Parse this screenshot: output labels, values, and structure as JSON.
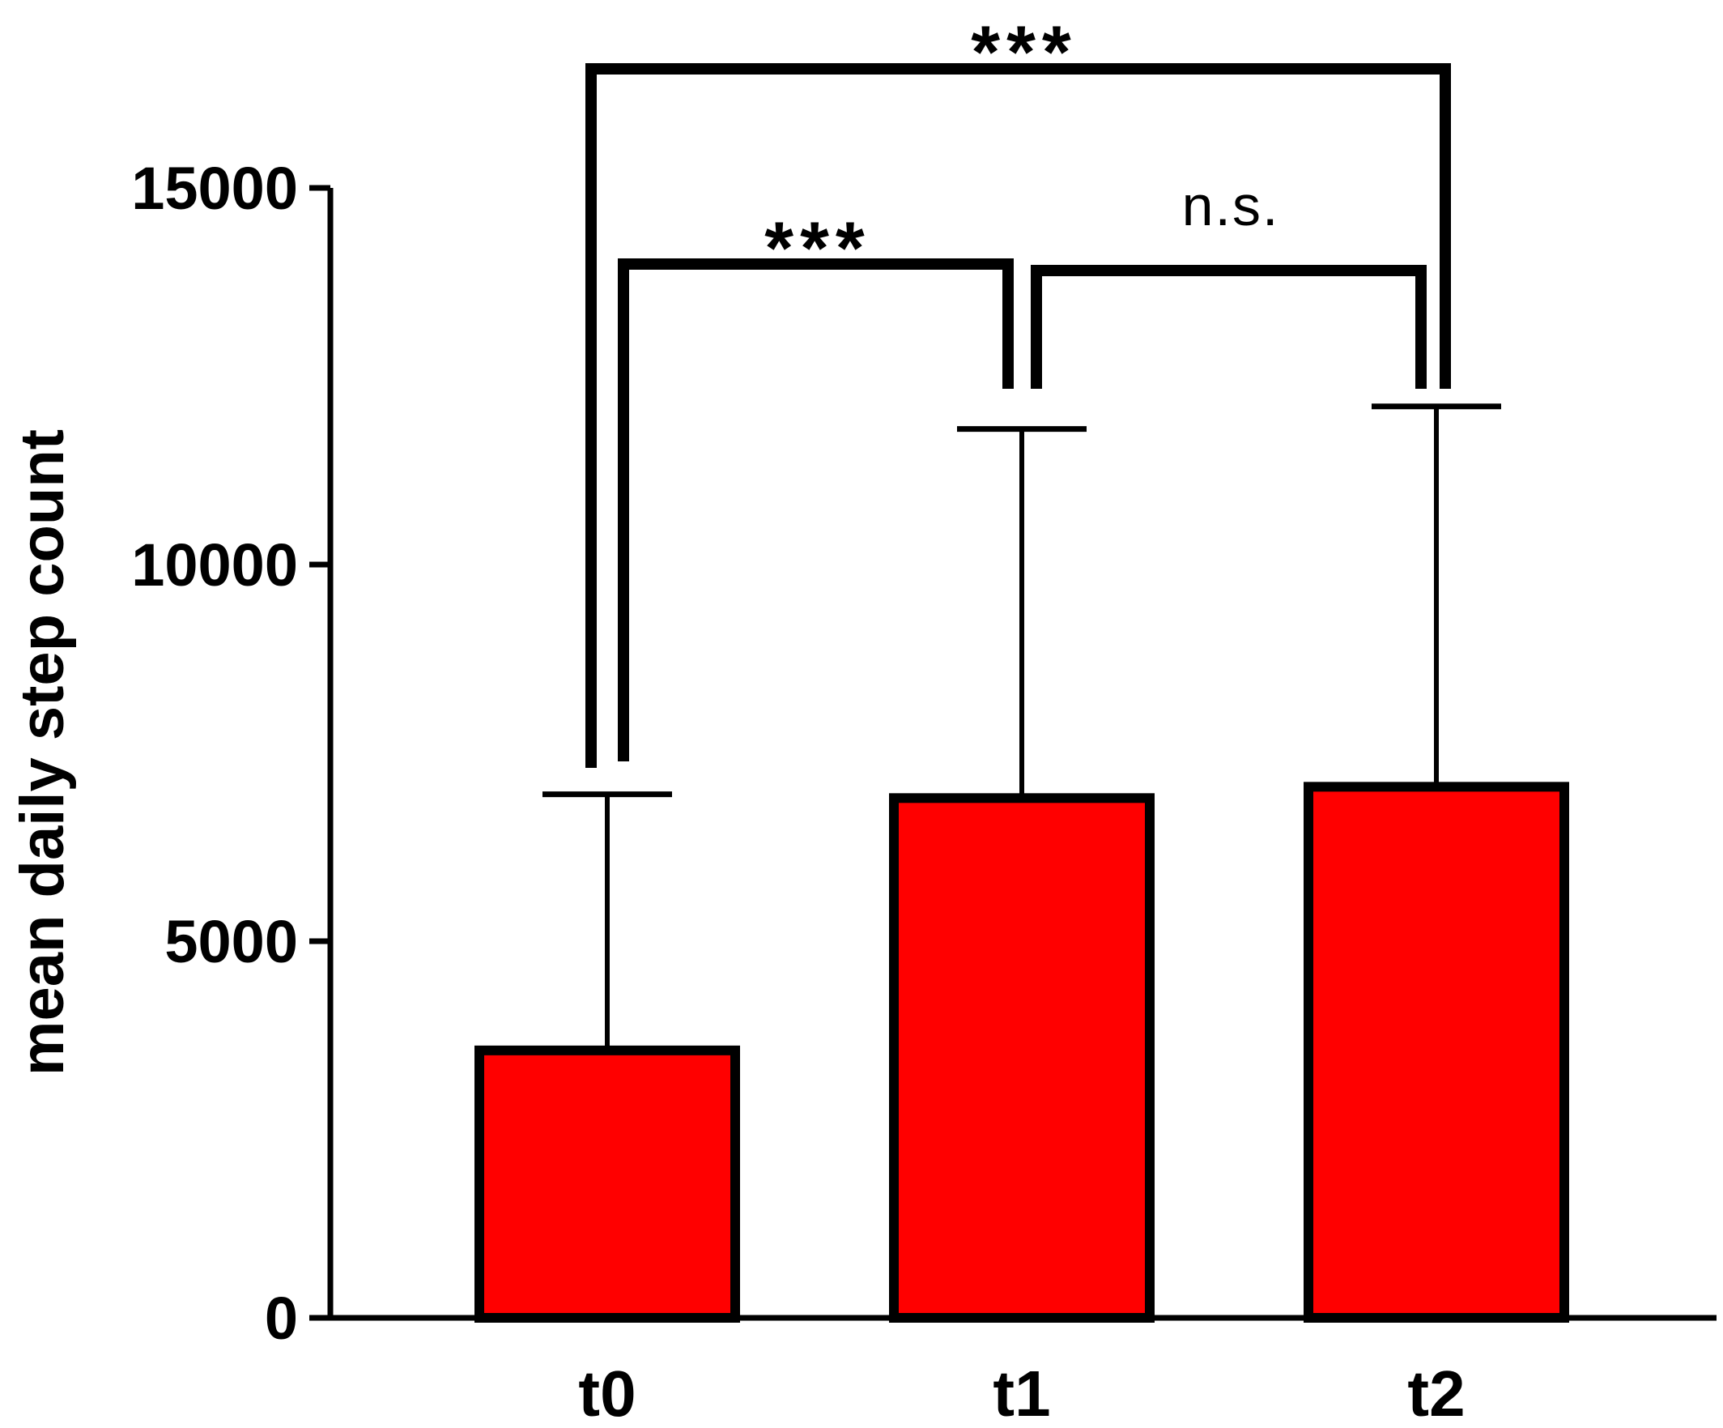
{
  "chart_data": {
    "type": "bar",
    "title": "",
    "xlabel": "",
    "ylabel": "mean daily step count",
    "ylim": [
      0,
      15000
    ],
    "yticks": [
      0,
      5000,
      10000,
      15000
    ],
    "ytick_labels": [
      "0",
      "5000",
      "10000",
      "15000"
    ],
    "categories": [
      "t0",
      "t1",
      "t2"
    ],
    "values": [
      3550,
      6900,
      7050
    ],
    "error_upper": [
      6950,
      11800,
      12100
    ],
    "grid": false,
    "legend": "none",
    "colors": {
      "bar_fill": "#ff0000",
      "bar_edge": "#000000",
      "axis": "#000000",
      "text": "#000000"
    },
    "annotations": [
      {
        "from": "t0",
        "to": "t1",
        "label": "***"
      },
      {
        "from": "t1",
        "to": "t2",
        "label": "n.s."
      },
      {
        "from": "t0",
        "to": "t2",
        "label": "***"
      }
    ]
  }
}
